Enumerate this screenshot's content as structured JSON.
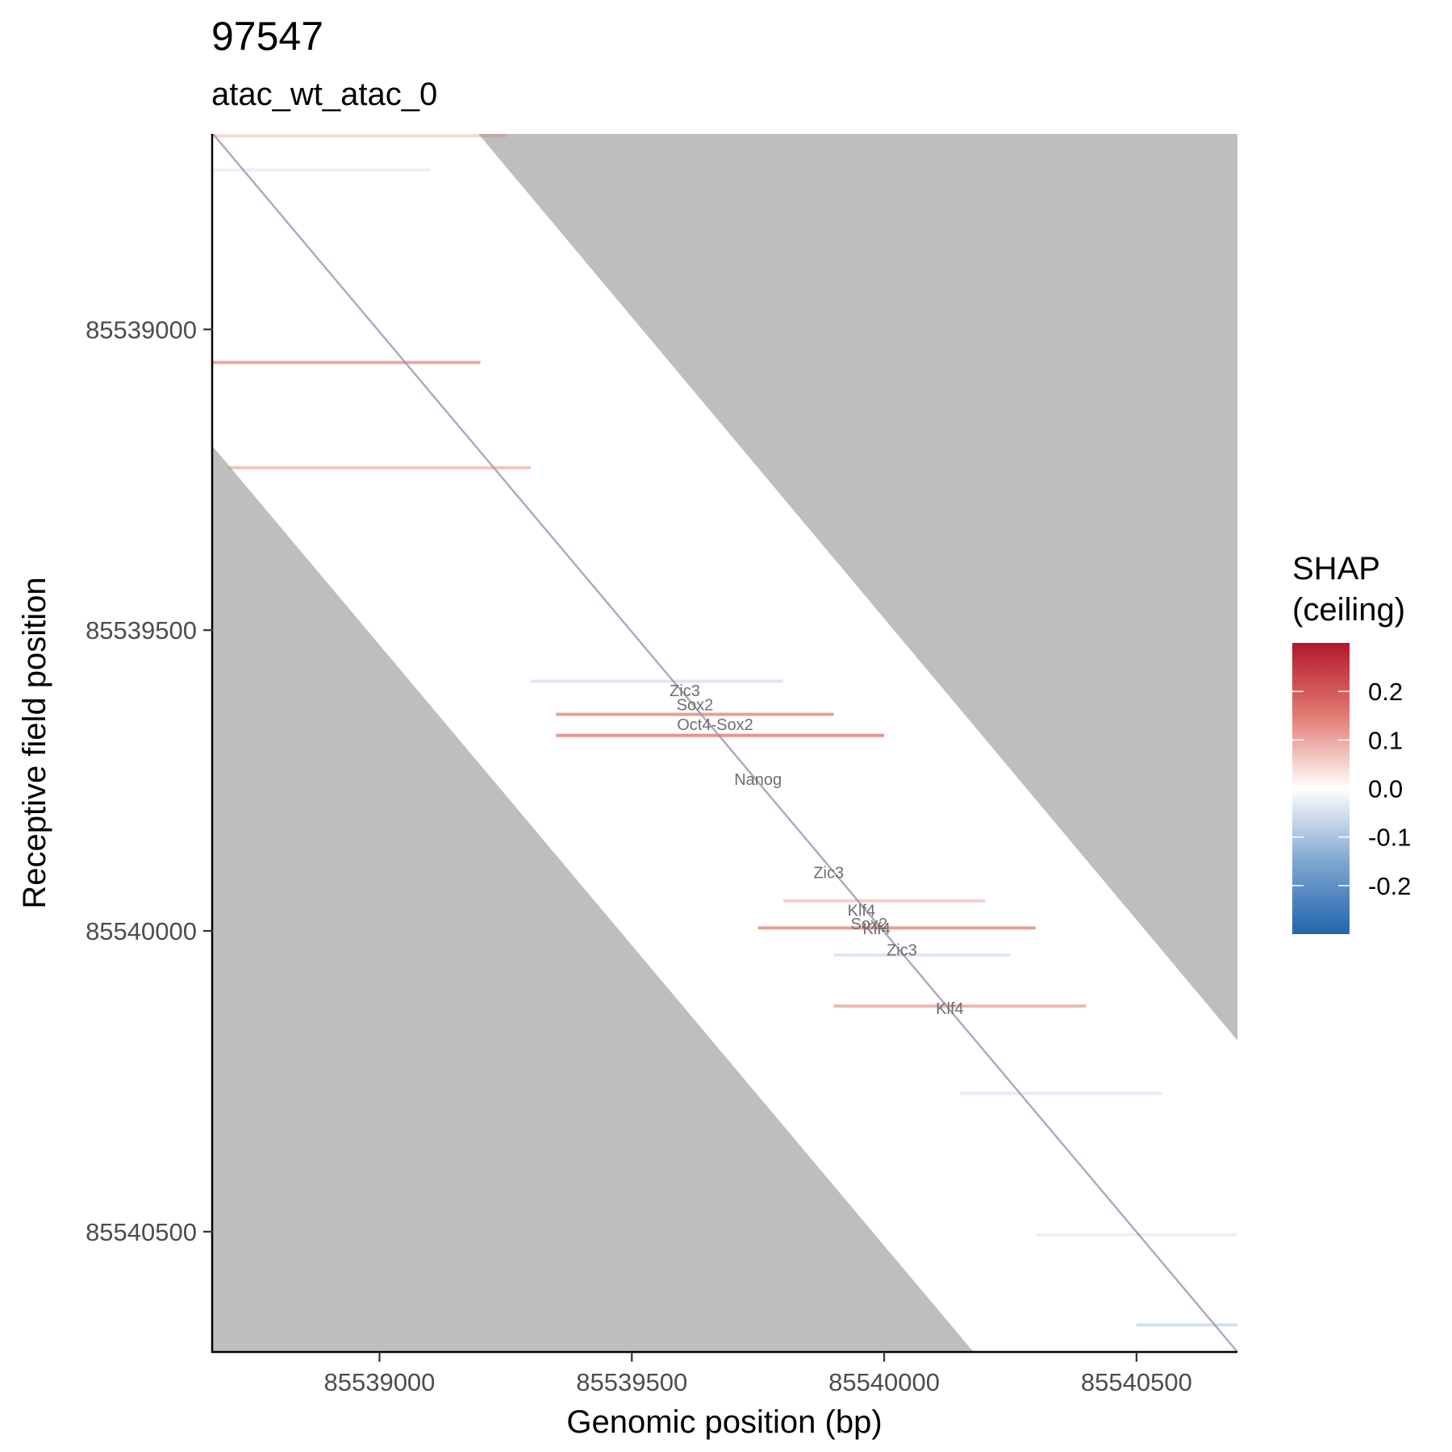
{
  "chart_data": {
    "type": "heatmap",
    "title": "97547",
    "subtitle": "atac_wt_atac_0",
    "xlabel": "Genomic position (bp)",
    "ylabel": "Receptive field position",
    "xlim": [
      85538670,
      85540700
    ],
    "ylim": [
      85538675,
      85540700
    ],
    "y_reversed": true,
    "x_ticks": [
      85539000,
      85539500,
      85540000,
      85540500
    ],
    "x_tick_labels": [
      "85539000",
      "85539500",
      "85540000",
      "85540500"
    ],
    "y_ticks": [
      85539000,
      85539500,
      85540000,
      85540500
    ],
    "y_tick_labels": [
      "85539000",
      "85539500",
      "85540000",
      "85540500"
    ],
    "grid": false,
    "background_fill": "#bebebe",
    "band": {
      "upper_edge": [
        [
          85538670,
          85538675
        ],
        [
          85539196,
          85538675
        ],
        [
          85540700,
          85540182
        ]
      ],
      "lower_edge": [
        [
          85540700,
          85540700
        ],
        [
          85540177,
          85540700
        ],
        [
          85538670,
          85539195
        ]
      ],
      "fill": "#ffffff"
    },
    "diagonal": [
      [
        85538670,
        85538675
      ],
      [
        85540700,
        85540700
      ]
    ],
    "highlight_rows": [
      {
        "y": 85538678,
        "x": [
          85538670,
          85539250
        ],
        "shap": 0.08
      },
      {
        "y": 85538735,
        "x": [
          85538670,
          85539100
        ],
        "shap": -0.05
      },
      {
        "y": 85539055,
        "x": [
          85538670,
          85539200
        ],
        "shap": 0.18
      },
      {
        "y": 85539230,
        "x": [
          85538700,
          85539300
        ],
        "shap": 0.12
      },
      {
        "y": 85539585,
        "x": [
          85539300,
          85539800
        ],
        "shap": -0.08
      },
      {
        "y": 85539640,
        "x": [
          85539350,
          85539900
        ],
        "shap": 0.2
      },
      {
        "y": 85539675,
        "x": [
          85539350,
          85540000
        ],
        "shap": 0.22
      },
      {
        "y": 85539950,
        "x": [
          85539800,
          85540200
        ],
        "shap": 0.1
      },
      {
        "y": 85539995,
        "x": [
          85539750,
          85540300
        ],
        "shap": 0.2
      },
      {
        "y": 85540040,
        "x": [
          85539900,
          85540250
        ],
        "shap": -0.08
      },
      {
        "y": 85540125,
        "x": [
          85539900,
          85540400
        ],
        "shap": 0.15
      },
      {
        "y": 85540270,
        "x": [
          85540150,
          85540550
        ],
        "shap": -0.06
      },
      {
        "y": 85540505,
        "x": [
          85540300,
          85540700
        ],
        "shap": -0.05
      },
      {
        "y": 85540655,
        "x": [
          85540500,
          85540700
        ],
        "shap": -0.1
      }
    ],
    "annotations": [
      {
        "label": "Zic3",
        "x": 85539605,
        "y": 85539610
      },
      {
        "label": "Sox2",
        "x": 85539625,
        "y": 85539633
      },
      {
        "label": "Oct4-Sox2",
        "x": 85539665,
        "y": 85539666
      },
      {
        "label": "Nanog",
        "x": 85539750,
        "y": 85539757
      },
      {
        "label": "Zic3",
        "x": 85539890,
        "y": 85539912
      },
      {
        "label": "Klf4",
        "x": 85539955,
        "y": 85539975
      },
      {
        "label": "Sox2",
        "x": 85539970,
        "y": 85539997
      },
      {
        "label": "Klf4",
        "x": 85539985,
        "y": 85540005
      },
      {
        "label": "Zic3",
        "x": 85540035,
        "y": 85540041
      },
      {
        "label": "Klf4",
        "x": 85540130,
        "y": 85540138
      }
    ],
    "legend": {
      "title_lines": [
        "SHAP",
        "(ceiling)"
      ],
      "position": "right",
      "range": [
        -0.3,
        0.3
      ],
      "ticks": [
        0.2,
        0.1,
        0.0,
        -0.1,
        -0.2
      ],
      "tick_labels": [
        "0.2",
        "0.1",
        "0.0",
        "-0.1",
        "-0.2"
      ],
      "colors": {
        "high": "#b2182b",
        "mid": "#ffffff",
        "low": "#2166ac"
      }
    }
  }
}
